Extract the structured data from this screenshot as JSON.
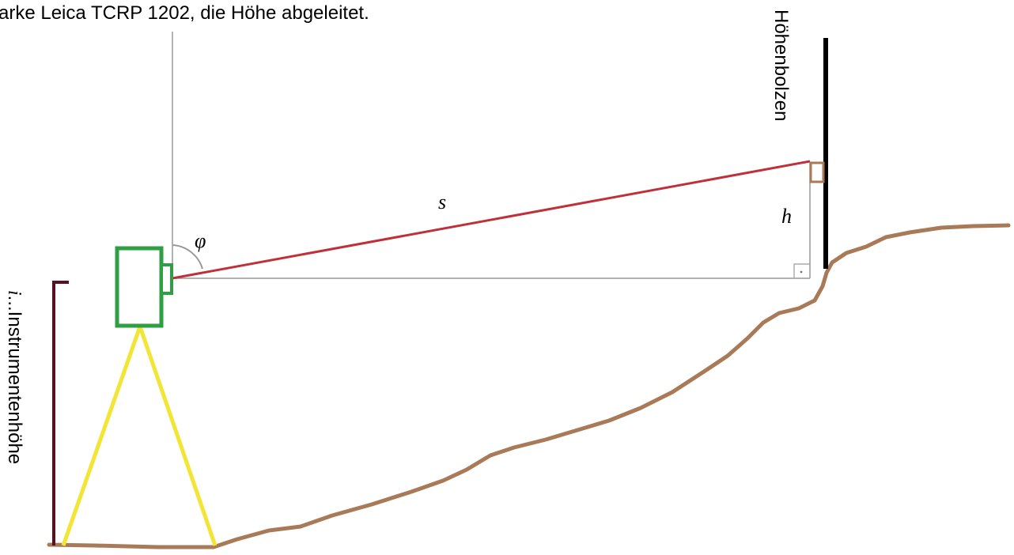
{
  "caption": "arke Leica TCRP 1202, die Höhe abgeleitet.",
  "labels": {
    "bolt": "Höhenbolzen",
    "instrument_height_symbol": "i",
    "instrument_height_text": "...Instrumentenhöhe",
    "slope_distance": "s",
    "height_difference": "h",
    "zenith_angle": "φ"
  },
  "colors": {
    "ground": "#a97a58",
    "sight_line": "#c0303a",
    "instrument": "#2ea043",
    "tripod": "#f2e534",
    "bolt_rod": "#000000",
    "height_bracket": "#5a1020",
    "construction_lines": "#999999"
  }
}
